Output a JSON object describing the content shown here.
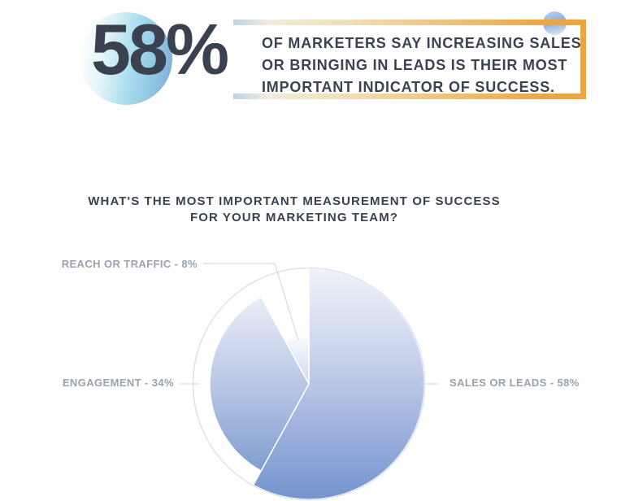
{
  "hero": {
    "stat_value": "58%",
    "statement_full": "OF MARKETERS SAY INCREASING SALES OR BRINGING IN LEADS IS THEIR MOST IMPORTANT INDICATOR OF SUCCESS.",
    "statement_lines": [
      "OF MARKETERS SAY INCREASING SALES",
      "OR BRINGING IN LEADS IS THEIR MOST",
      "IMPORTANT INDICATOR OF SUCCESS."
    ]
  },
  "chart_data": {
    "type": "pie",
    "title": "WHAT'S THE MOST IMPORTANT MEASUREMENT OF SUCCESS FOR YOUR MARKETING TEAM?",
    "title_lines": [
      "WHAT'S THE MOST IMPORTANT MEASUREMENT OF SUCCESS",
      "FOR YOUR MARKETING TEAM?"
    ],
    "units": "%",
    "start_angle_deg": 0,
    "direction": "clockwise",
    "legend_position": "callout-labels",
    "center": [
      170,
      157
    ],
    "slices": [
      {
        "label": "SALES OR LEADS",
        "value": 58,
        "display_label": "SALES OR LEADS - 58%",
        "radius": 142
      },
      {
        "label": "ENGAGEMENT",
        "value": 34,
        "display_label": "ENGAGEMENT - 34%",
        "radius": 122
      },
      {
        "label": "REACH OR TRAFFIC",
        "value": 8,
        "display_label": "REACH OR TRAFFIC - 8%",
        "radius": 58
      }
    ]
  },
  "colors": {
    "ink": "#3a414f",
    "label_gray": "#9aa2ad",
    "accent_orange": "#eda53e",
    "pie_blue_deep": "#7294cf",
    "pie_blue_light": "#eff2f9",
    "ring": "#dde3ed",
    "leader_line": "#ccd4e0",
    "stat_circle_cyan": "#aadeef",
    "dot_blue": "#8fafdd"
  }
}
